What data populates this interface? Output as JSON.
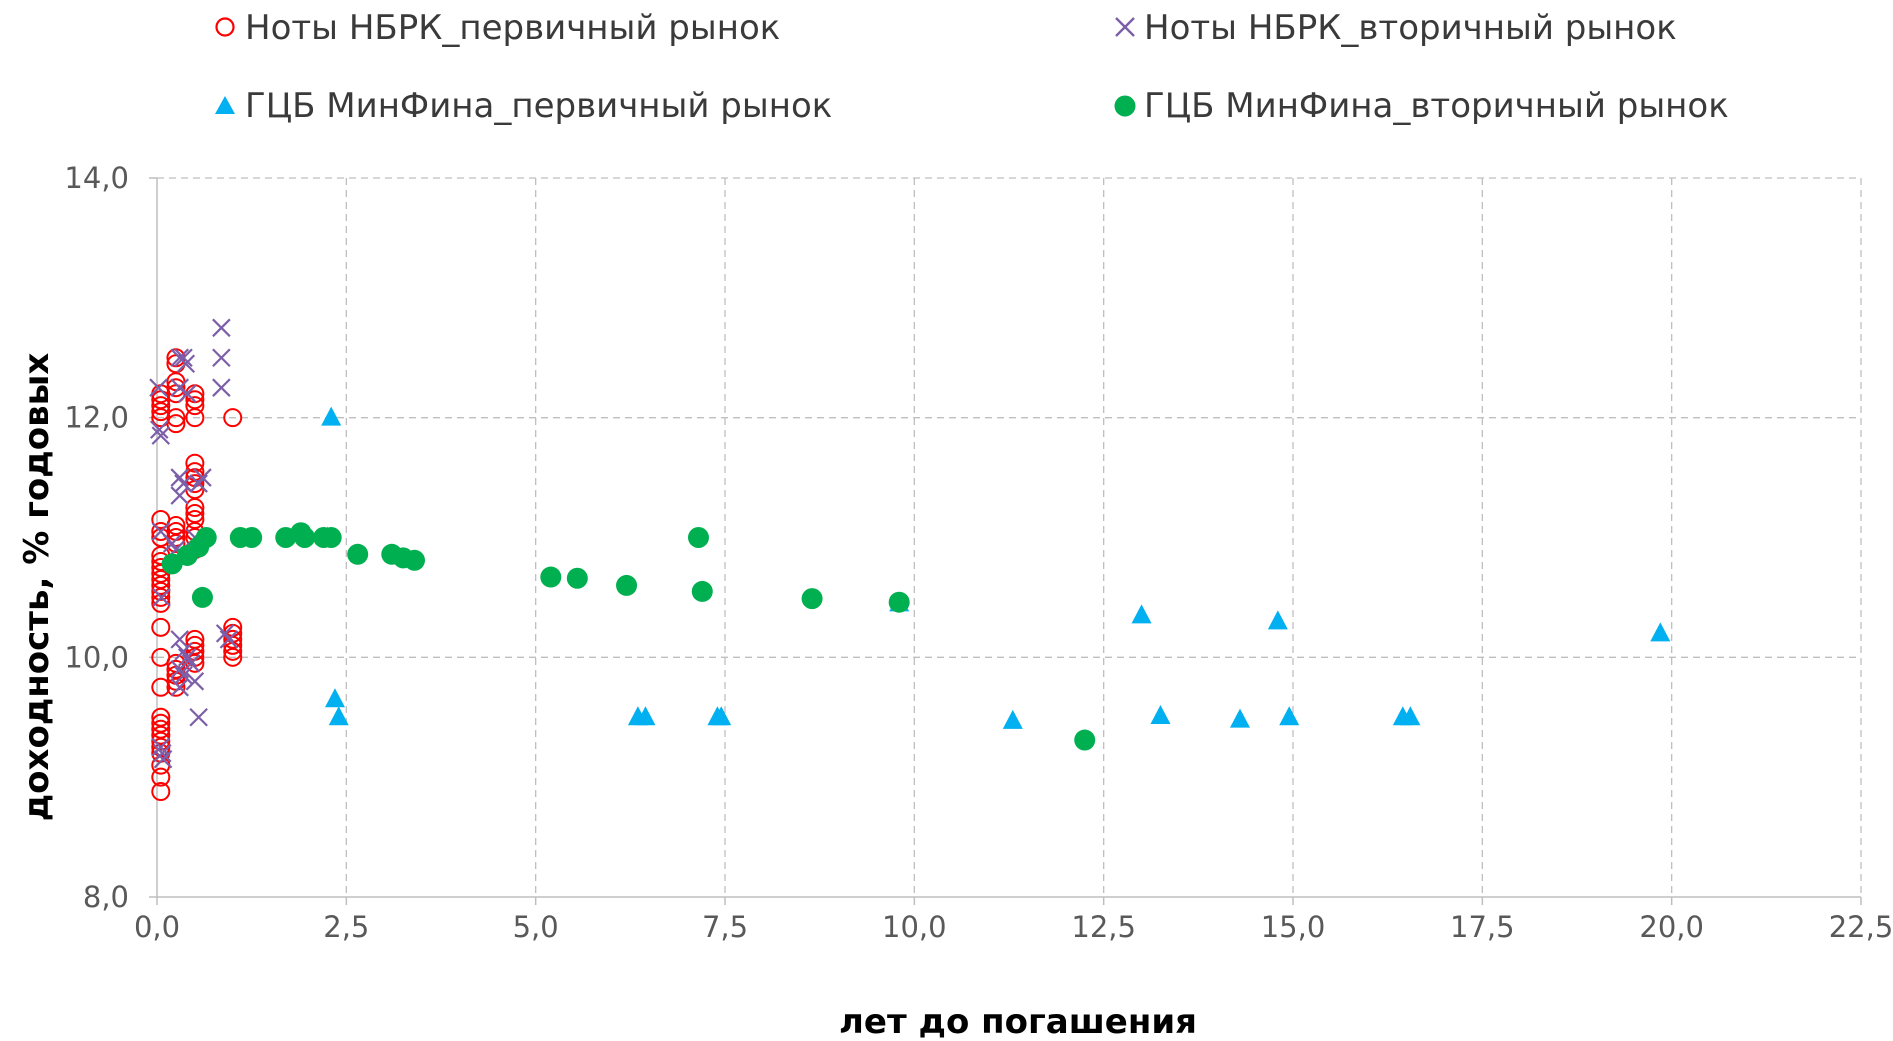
{
  "chart_data": {
    "type": "scatter",
    "xlabel": "лет до погашения",
    "ylabel": "доходность, % годовых",
    "xlim": [
      0,
      22.5
    ],
    "ylim": [
      8,
      14
    ],
    "x_ticks": [
      "0,0",
      "2,5",
      "5,0",
      "7,5",
      "10,0",
      "12,5",
      "15,0",
      "17,5",
      "20,0",
      "22,5"
    ],
    "y_ticks": [
      "8,0",
      "10,0",
      "12,0",
      "14,0"
    ],
    "grid": true,
    "legend_position": "top",
    "series": [
      {
        "name": "Ноты НБРК_первичный рынок",
        "marker": "circle-open",
        "color": "#ff0000",
        "points": [
          [
            0.05,
            12.2
          ],
          [
            0.05,
            12.15
          ],
          [
            0.05,
            12.1
          ],
          [
            0.05,
            12.05
          ],
          [
            0.05,
            12.0
          ],
          [
            0.05,
            11.15
          ],
          [
            0.05,
            11.05
          ],
          [
            0.05,
            11.0
          ],
          [
            0.05,
            10.85
          ],
          [
            0.05,
            10.8
          ],
          [
            0.05,
            10.75
          ],
          [
            0.05,
            10.7
          ],
          [
            0.05,
            10.65
          ],
          [
            0.05,
            10.6
          ],
          [
            0.05,
            10.55
          ],
          [
            0.05,
            10.5
          ],
          [
            0.05,
            10.45
          ],
          [
            0.05,
            10.25
          ],
          [
            0.05,
            10.0
          ],
          [
            0.05,
            9.75
          ],
          [
            0.05,
            9.5
          ],
          [
            0.05,
            9.45
          ],
          [
            0.05,
            9.4
          ],
          [
            0.05,
            9.35
          ],
          [
            0.05,
            9.3
          ],
          [
            0.05,
            9.25
          ],
          [
            0.05,
            9.2
          ],
          [
            0.05,
            9.1
          ],
          [
            0.05,
            9.0
          ],
          [
            0.05,
            8.88
          ],
          [
            0.25,
            12.5
          ],
          [
            0.25,
            12.45
          ],
          [
            0.25,
            12.3
          ],
          [
            0.25,
            12.25
          ],
          [
            0.25,
            12.2
          ],
          [
            0.25,
            12.0
          ],
          [
            0.25,
            11.95
          ],
          [
            0.25,
            11.1
          ],
          [
            0.25,
            11.05
          ],
          [
            0.25,
            11.0
          ],
          [
            0.25,
            10.95
          ],
          [
            0.25,
            9.95
          ],
          [
            0.25,
            9.9
          ],
          [
            0.25,
            9.85
          ],
          [
            0.25,
            9.8
          ],
          [
            0.25,
            9.75
          ],
          [
            0.5,
            12.2
          ],
          [
            0.5,
            12.15
          ],
          [
            0.5,
            12.1
          ],
          [
            0.5,
            12.0
          ],
          [
            0.5,
            11.62
          ],
          [
            0.5,
            11.55
          ],
          [
            0.5,
            11.5
          ],
          [
            0.5,
            11.45
          ],
          [
            0.5,
            11.4
          ],
          [
            0.5,
            11.25
          ],
          [
            0.5,
            11.2
          ],
          [
            0.5,
            11.15
          ],
          [
            0.5,
            11.05
          ],
          [
            0.5,
            11.0
          ],
          [
            0.5,
            10.9
          ],
          [
            0.5,
            10.15
          ],
          [
            0.5,
            10.1
          ],
          [
            0.5,
            10.05
          ],
          [
            0.5,
            10.0
          ],
          [
            0.5,
            9.95
          ],
          [
            1.0,
            12.0
          ],
          [
            1.0,
            10.25
          ],
          [
            1.0,
            10.2
          ],
          [
            1.0,
            10.15
          ],
          [
            1.0,
            10.1
          ],
          [
            1.0,
            10.05
          ],
          [
            1.0,
            10.0
          ]
        ]
      },
      {
        "name": "Ноты НБРК_вторичный рынок",
        "marker": "x",
        "color": "#7c5fa8",
        "points": [
          [
            0.02,
            12.25
          ],
          [
            0.03,
            11.9
          ],
          [
            0.05,
            11.85
          ],
          [
            0.05,
            11.05
          ],
          [
            0.06,
            10.5
          ],
          [
            0.05,
            9.25
          ],
          [
            0.07,
            9.2
          ],
          [
            0.08,
            9.15
          ],
          [
            0.3,
            12.5
          ],
          [
            0.35,
            12.5
          ],
          [
            0.38,
            12.45
          ],
          [
            0.3,
            12.25
          ],
          [
            0.4,
            12.2
          ],
          [
            0.3,
            11.5
          ],
          [
            0.35,
            11.45
          ],
          [
            0.3,
            11.35
          ],
          [
            0.2,
            10.95
          ],
          [
            0.25,
            10.9
          ],
          [
            0.3,
            10.15
          ],
          [
            0.35,
            10.05
          ],
          [
            0.4,
            10.0
          ],
          [
            0.45,
            9.95
          ],
          [
            0.3,
            9.9
          ],
          [
            0.35,
            9.85
          ],
          [
            0.5,
            9.8
          ],
          [
            0.3,
            9.75
          ],
          [
            0.55,
            9.5
          ],
          [
            0.6,
            11.5
          ],
          [
            0.55,
            11.45
          ],
          [
            0.5,
            11.0
          ],
          [
            0.85,
            12.75
          ],
          [
            0.85,
            12.5
          ],
          [
            0.85,
            12.25
          ],
          [
            0.9,
            10.2
          ],
          [
            0.95,
            10.15
          ]
        ]
      },
      {
        "name": "ГЦБ МинФина_первичный рынок",
        "marker": "triangle",
        "color": "#00b0f0",
        "points": [
          [
            2.3,
            12.0
          ],
          [
            2.35,
            9.65
          ],
          [
            2.4,
            9.5
          ],
          [
            2.25,
            11.0
          ],
          [
            6.35,
            9.5
          ],
          [
            6.45,
            9.5
          ],
          [
            7.4,
            9.5
          ],
          [
            7.45,
            9.5
          ],
          [
            9.8,
            10.45
          ],
          [
            11.3,
            9.47
          ],
          [
            13.0,
            10.35
          ],
          [
            13.25,
            9.51
          ],
          [
            14.3,
            9.48
          ],
          [
            14.8,
            10.3
          ],
          [
            14.95,
            9.5
          ],
          [
            16.45,
            9.5
          ],
          [
            16.55,
            9.5
          ],
          [
            19.85,
            10.2
          ]
        ]
      },
      {
        "name": "ГЦБ МинФина_вторичный рынок",
        "marker": "circle-filled",
        "color": "#00b050",
        "points": [
          [
            0.2,
            10.78
          ],
          [
            0.4,
            10.85
          ],
          [
            0.55,
            10.92
          ],
          [
            0.65,
            11.0
          ],
          [
            0.6,
            10.5
          ],
          [
            1.1,
            11.0
          ],
          [
            1.25,
            11.0
          ],
          [
            1.7,
            11.0
          ],
          [
            1.9,
            11.04
          ],
          [
            1.95,
            11.0
          ],
          [
            2.2,
            11.0
          ],
          [
            2.3,
            11.0
          ],
          [
            2.65,
            10.86
          ],
          [
            3.1,
            10.86
          ],
          [
            3.25,
            10.83
          ],
          [
            3.4,
            10.81
          ],
          [
            5.2,
            10.67
          ],
          [
            5.55,
            10.66
          ],
          [
            6.2,
            10.6
          ],
          [
            7.15,
            11.0
          ],
          [
            7.2,
            10.55
          ],
          [
            8.65,
            10.49
          ],
          [
            9.8,
            10.46
          ],
          [
            12.25,
            9.31
          ]
        ]
      }
    ]
  },
  "legend": [
    {
      "label": "Ноты НБРК_первичный рынок",
      "marker": "circle-open",
      "color": "#ff0000"
    },
    {
      "label": "Ноты НБРК_вторичный рынок",
      "marker": "x",
      "color": "#7c5fa8"
    },
    {
      "label": "ГЦБ МинФина_первичный рынок",
      "marker": "triangle",
      "color": "#00b0f0"
    },
    {
      "label": "ГЦБ МинФина_вторичный рынок",
      "marker": "circle-filled",
      "color": "#00b050"
    }
  ]
}
